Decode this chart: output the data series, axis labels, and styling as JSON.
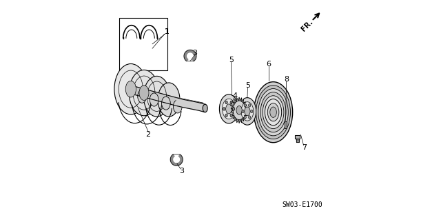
{
  "bg_color": "#ffffff",
  "border_color": "#000000",
  "line_color": "#000000",
  "diagram_code": "SW03-E1700",
  "fr_label": "FR.",
  "label_fontsize": 7.5,
  "code_fontsize": 7
}
